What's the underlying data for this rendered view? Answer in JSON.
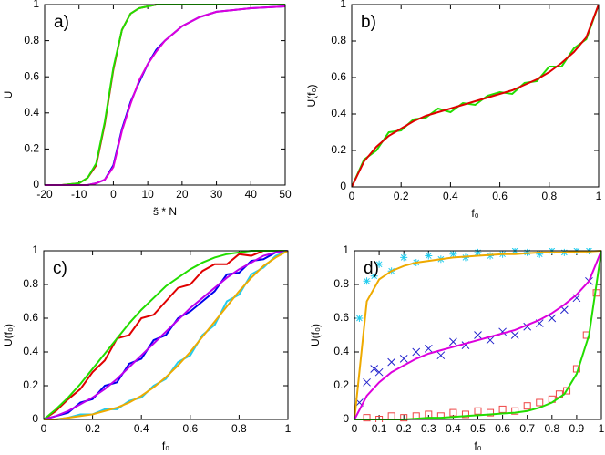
{
  "chart_data": [
    {
      "type": "line",
      "label": "a)",
      "ylabel": "U",
      "xlabel": "s̃ * N",
      "xlim": [
        -20,
        50
      ],
      "xticks": [
        -20,
        -10,
        0,
        10,
        20,
        30,
        40,
        50
      ],
      "ylim": [
        0,
        1
      ],
      "yticks": [
        0,
        0.2,
        0.4,
        0.6,
        0.8,
        1
      ],
      "x": [
        -20,
        -15,
        -10,
        -7.5,
        -5,
        -2.5,
        0,
        2.5,
        5,
        7.5,
        10,
        12.5,
        15,
        20,
        25,
        30,
        40,
        50
      ],
      "series": [
        {
          "color": "#e00000",
          "values": [
            0,
            0,
            0.01,
            0.04,
            0.11,
            0.34,
            0.64,
            0.86,
            0.95,
            0.98,
            0.99,
            1,
            1,
            1,
            1,
            1,
            1,
            1
          ]
        },
        {
          "color": "#22dd00",
          "values": [
            0,
            0,
            0.01,
            0.04,
            0.12,
            0.35,
            0.65,
            0.86,
            0.95,
            0.98,
            0.99,
            1,
            1,
            1,
            1,
            1,
            1,
            1
          ]
        },
        {
          "color": "#0000ee",
          "values": [
            0,
            0,
            0,
            0,
            0.01,
            0.03,
            0.11,
            0.31,
            0.46,
            0.57,
            0.67,
            0.75,
            0.8,
            0.88,
            0.93,
            0.96,
            0.98,
            0.99
          ]
        },
        {
          "color": "#dd00dd",
          "values": [
            0,
            0,
            0,
            0,
            0.01,
            0.03,
            0.1,
            0.3,
            0.45,
            0.58,
            0.67,
            0.74,
            0.8,
            0.88,
            0.93,
            0.96,
            0.98,
            0.99
          ]
        }
      ]
    },
    {
      "type": "line",
      "label": "b)",
      "ylabel": "U(f₀)",
      "xlabel": "f₀",
      "xlim": [
        0,
        1
      ],
      "xticks": [
        0,
        0.2,
        0.4,
        0.6,
        0.8,
        1
      ],
      "ylim": [
        0,
        1
      ],
      "yticks": [
        0,
        0.2,
        0.4,
        0.6,
        0.8,
        1
      ],
      "x": [
        0,
        0.05,
        0.1,
        0.15,
        0.2,
        0.25,
        0.3,
        0.35,
        0.4,
        0.45,
        0.5,
        0.55,
        0.6,
        0.65,
        0.7,
        0.75,
        0.8,
        0.85,
        0.9,
        0.95,
        1
      ],
      "series": [
        {
          "color": "#22dd00",
          "values": [
            0,
            0.15,
            0.2,
            0.3,
            0.31,
            0.37,
            0.38,
            0.43,
            0.41,
            0.46,
            0.45,
            0.5,
            0.52,
            0.51,
            0.57,
            0.58,
            0.66,
            0.66,
            0.76,
            0.81,
            1
          ]
        },
        {
          "color": "#e00000",
          "values": [
            0,
            0.14,
            0.22,
            0.28,
            0.32,
            0.36,
            0.39,
            0.41,
            0.43,
            0.45,
            0.47,
            0.49,
            0.51,
            0.53,
            0.56,
            0.59,
            0.63,
            0.68,
            0.74,
            0.82,
            1
          ]
        }
      ]
    },
    {
      "type": "line",
      "label": "c)",
      "ylabel": "U(f₀)",
      "xlabel": "f₀",
      "xlim": [
        0,
        1
      ],
      "xticks": [
        0,
        0.2,
        0.4,
        0.6,
        0.8,
        1
      ],
      "ylim": [
        0,
        1
      ],
      "yticks": [
        0,
        0.2,
        0.4,
        0.6,
        0.8,
        1
      ],
      "x": [
        0,
        0.05,
        0.1,
        0.15,
        0.2,
        0.25,
        0.3,
        0.35,
        0.4,
        0.45,
        0.5,
        0.55,
        0.6,
        0.65,
        0.7,
        0.75,
        0.8,
        0.85,
        0.9,
        0.95,
        1
      ],
      "series": [
        {
          "color": "#e00000",
          "values": [
            0,
            0.05,
            0.12,
            0.18,
            0.28,
            0.35,
            0.48,
            0.5,
            0.6,
            0.62,
            0.7,
            0.78,
            0.8,
            0.88,
            0.92,
            0.92,
            0.98,
            0.97,
            1,
            1,
            1
          ]
        },
        {
          "color": "#22dd00",
          "values": [
            0,
            0.06,
            0.13,
            0.21,
            0.3,
            0.39,
            0.48,
            0.57,
            0.65,
            0.72,
            0.79,
            0.84,
            0.89,
            0.93,
            0.96,
            0.98,
            0.99,
            1,
            1,
            1,
            1
          ]
        },
        {
          "color": "#0000ee",
          "values": [
            0,
            0.02,
            0.04,
            0.1,
            0.12,
            0.2,
            0.22,
            0.33,
            0.36,
            0.47,
            0.5,
            0.6,
            0.64,
            0.7,
            0.76,
            0.86,
            0.87,
            0.94,
            0.95,
            0.99,
            1
          ]
        },
        {
          "color": "#bb00ee",
          "values": [
            0,
            0.02,
            0.05,
            0.09,
            0.13,
            0.18,
            0.24,
            0.31,
            0.38,
            0.45,
            0.52,
            0.59,
            0.66,
            0.72,
            0.78,
            0.84,
            0.89,
            0.93,
            0.97,
            0.99,
            1
          ]
        },
        {
          "color": "#22ccee",
          "values": [
            0,
            0,
            0.01,
            0.03,
            0.03,
            0.06,
            0.06,
            0.11,
            0.13,
            0.2,
            0.24,
            0.34,
            0.38,
            0.5,
            0.56,
            0.7,
            0.74,
            0.86,
            0.9,
            0.97,
            1
          ]
        },
        {
          "color": "#eeaa00",
          "values": [
            0,
            0,
            0.01,
            0.02,
            0.03,
            0.05,
            0.07,
            0.1,
            0.14,
            0.19,
            0.25,
            0.32,
            0.4,
            0.49,
            0.58,
            0.67,
            0.76,
            0.84,
            0.91,
            0.96,
            1
          ]
        }
      ]
    },
    {
      "type": "line",
      "label": "d)",
      "ylabel": "U(f₀)",
      "xlabel": "f₀",
      "xlim": [
        0,
        1
      ],
      "xticks": [
        0,
        0.1,
        0.2,
        0.3,
        0.4,
        0.5,
        0.6,
        0.7,
        0.8,
        0.9,
        1
      ],
      "ylim": [
        0,
        1
      ],
      "yticks": [
        0,
        0.2,
        0.4,
        0.6,
        0.8,
        1
      ],
      "x": [
        0,
        0.05,
        0.1,
        0.15,
        0.2,
        0.25,
        0.3,
        0.35,
        0.4,
        0.45,
        0.5,
        0.55,
        0.6,
        0.65,
        0.7,
        0.75,
        0.8,
        0.85,
        0.9,
        0.95,
        1
      ],
      "series": [
        {
          "color": "#22ccee",
          "marker": "star",
          "x": [
            0.02,
            0.05,
            0.08,
            0.1,
            0.15,
            0.2,
            0.25,
            0.3,
            0.35,
            0.4,
            0.45,
            0.5,
            0.55,
            0.6,
            0.65,
            0.7,
            0.75,
            0.8,
            0.85,
            0.9,
            0.95
          ],
          "values": [
            0.6,
            0.82,
            0.85,
            0.92,
            0.88,
            0.96,
            0.93,
            0.97,
            0.95,
            0.98,
            0.96,
            0.99,
            0.97,
            0.98,
            1,
            0.99,
            0.98,
            1,
            0.99,
            1,
            1
          ]
        },
        {
          "color": "#2222cc",
          "marker": "cross",
          "x": [
            0.02,
            0.05,
            0.08,
            0.1,
            0.15,
            0.2,
            0.25,
            0.3,
            0.35,
            0.4,
            0.45,
            0.5,
            0.55,
            0.6,
            0.65,
            0.7,
            0.75,
            0.8,
            0.85,
            0.9,
            0.95
          ],
          "values": [
            0.1,
            0.22,
            0.3,
            0.28,
            0.34,
            0.36,
            0.4,
            0.42,
            0.38,
            0.46,
            0.44,
            0.5,
            0.47,
            0.52,
            0.5,
            0.55,
            0.57,
            0.6,
            0.65,
            0.72,
            0.82
          ]
        },
        {
          "color": "#ee4444",
          "marker": "square",
          "x": [
            0.05,
            0.1,
            0.15,
            0.2,
            0.25,
            0.3,
            0.35,
            0.4,
            0.45,
            0.5,
            0.55,
            0.6,
            0.65,
            0.7,
            0.75,
            0.8,
            0.83,
            0.86,
            0.9,
            0.94,
            0.98
          ],
          "values": [
            0.01,
            0,
            0.02,
            0.01,
            0.02,
            0.03,
            0.02,
            0.04,
            0.03,
            0.05,
            0.04,
            0.06,
            0.05,
            0.08,
            0.1,
            0.12,
            0.15,
            0.17,
            0.3,
            0.5,
            0.75
          ]
        },
        {
          "color": "#eeaa00",
          "values": [
            0,
            0.7,
            0.83,
            0.88,
            0.91,
            0.93,
            0.94,
            0.95,
            0.96,
            0.965,
            0.97,
            0.975,
            0.98,
            0.98,
            0.985,
            0.99,
            0.99,
            0.99,
            0.995,
            0.995,
            1
          ]
        },
        {
          "color": "#dd00dd",
          "values": [
            0,
            0.14,
            0.22,
            0.28,
            0.32,
            0.36,
            0.39,
            0.41,
            0.43,
            0.45,
            0.47,
            0.49,
            0.51,
            0.53,
            0.56,
            0.59,
            0.63,
            0.68,
            0.74,
            0.82,
            1
          ]
        },
        {
          "color": "#22dd00",
          "values": [
            0,
            0,
            0,
            0,
            0,
            0.005,
            0.01,
            0.01,
            0.015,
            0.02,
            0.025,
            0.03,
            0.035,
            0.04,
            0.05,
            0.07,
            0.1,
            0.15,
            0.27,
            0.5,
            1
          ]
        }
      ]
    }
  ]
}
